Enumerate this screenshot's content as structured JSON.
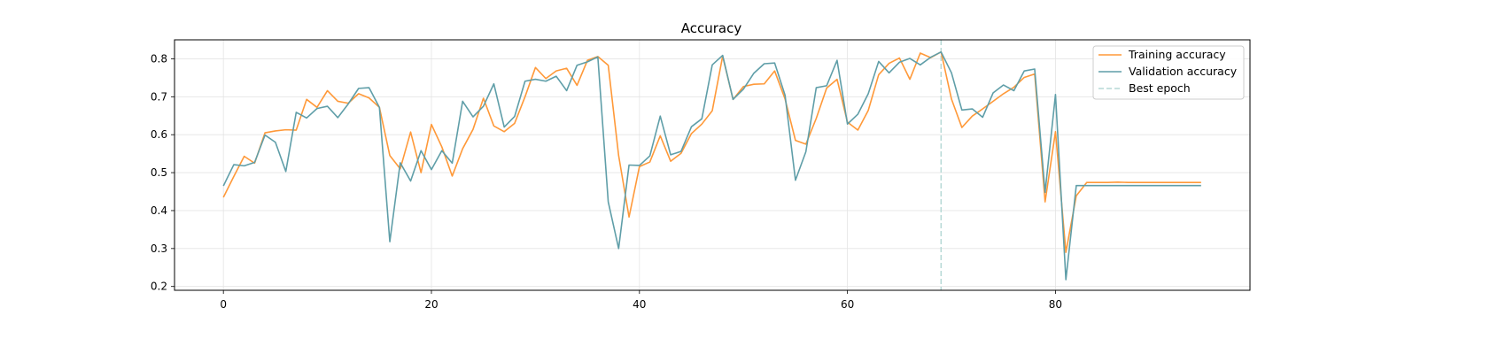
{
  "chart_data": {
    "type": "line",
    "title": "Accuracy",
    "xlabel": "",
    "ylabel": "",
    "xlim": [
      -4.7,
      98.7
    ],
    "ylim": [
      0.19,
      0.85
    ],
    "xticks": [
      0,
      20,
      40,
      60,
      80
    ],
    "yticks": [
      0.2,
      0.3,
      0.4,
      0.5,
      0.6,
      0.7,
      0.8
    ],
    "grid": true,
    "legend_position": "top-right",
    "best_epoch": 69,
    "best_epoch_label": "Best epoch",
    "series": [
      {
        "name": "Training accuracy",
        "color": "#ff9939",
        "values": [
          0.435,
          0.49,
          0.543,
          0.525,
          0.605,
          0.61,
          0.613,
          0.612,
          0.693,
          0.672,
          0.716,
          0.688,
          0.683,
          0.708,
          0.697,
          0.672,
          0.545,
          0.51,
          0.607,
          0.5,
          0.627,
          0.568,
          0.491,
          0.563,
          0.614,
          0.696,
          0.623,
          0.608,
          0.63,
          0.7,
          0.777,
          0.748,
          0.768,
          0.775,
          0.73,
          0.796,
          0.806,
          0.783,
          0.545,
          0.383,
          0.516,
          0.528,
          0.597,
          0.53,
          0.551,
          0.603,
          0.628,
          0.663,
          0.807,
          0.693,
          0.727,
          0.733,
          0.734,
          0.768,
          0.694,
          0.585,
          0.575,
          0.643,
          0.723,
          0.746,
          0.633,
          0.612,
          0.664,
          0.758,
          0.788,
          0.802,
          0.746,
          0.815,
          0.803,
          0.818,
          0.694,
          0.619,
          0.649,
          0.668,
          0.688,
          0.708,
          0.725,
          0.751,
          0.76,
          0.423,
          0.608,
          0.29,
          0.439,
          0.474,
          0.474,
          0.474,
          0.475,
          0.474,
          0.474,
          0.474,
          0.474,
          0.474,
          0.474,
          0.474,
          0.474
        ]
      },
      {
        "name": "Validation accuracy",
        "color": "#5f9ea8",
        "values": [
          0.465,
          0.521,
          0.518,
          0.527,
          0.599,
          0.58,
          0.503,
          0.659,
          0.644,
          0.669,
          0.675,
          0.645,
          0.681,
          0.722,
          0.724,
          0.672,
          0.318,
          0.526,
          0.478,
          0.558,
          0.508,
          0.558,
          0.525,
          0.688,
          0.647,
          0.675,
          0.734,
          0.62,
          0.648,
          0.741,
          0.746,
          0.741,
          0.754,
          0.716,
          0.783,
          0.792,
          0.805,
          0.423,
          0.3,
          0.52,
          0.519,
          0.544,
          0.649,
          0.547,
          0.556,
          0.621,
          0.642,
          0.784,
          0.809,
          0.693,
          0.72,
          0.762,
          0.787,
          0.789,
          0.704,
          0.48,
          0.555,
          0.724,
          0.729,
          0.796,
          0.628,
          0.654,
          0.708,
          0.793,
          0.763,
          0.791,
          0.801,
          0.784,
          0.804,
          0.818,
          0.763,
          0.665,
          0.668,
          0.646,
          0.71,
          0.731,
          0.716,
          0.768,
          0.773,
          0.448,
          0.706,
          0.218,
          0.466,
          0.466,
          0.466,
          0.466,
          0.466,
          0.466,
          0.466,
          0.466,
          0.466,
          0.466,
          0.466,
          0.466,
          0.466
        ]
      }
    ]
  }
}
